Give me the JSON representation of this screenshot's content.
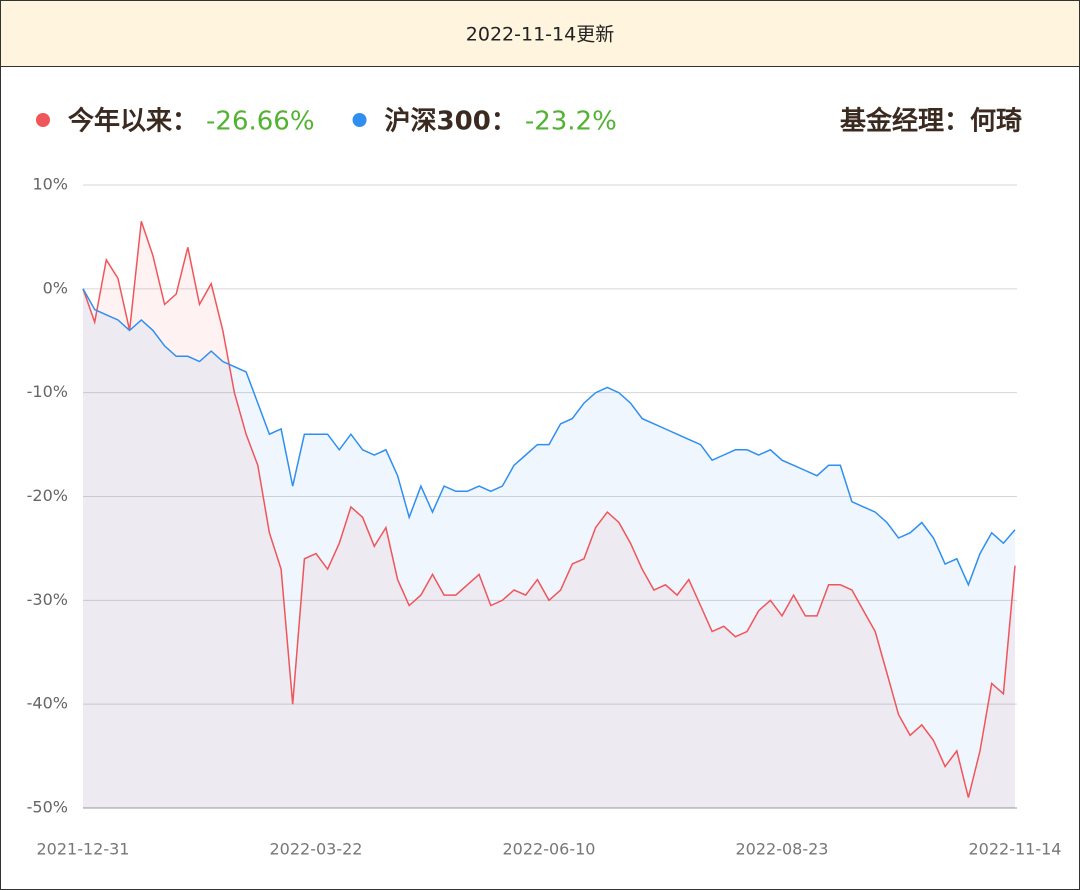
{
  "header": {
    "title": "2022-11-14更新"
  },
  "chart_data": {
    "type": "line",
    "manager": "基金经理：何琦",
    "categories": [
      "2021-12-31",
      null,
      null,
      null,
      null,
      null,
      null,
      null,
      null,
      null,
      null,
      null,
      null,
      null,
      null,
      null,
      null,
      null,
      null,
      null,
      "2022-03-22",
      null,
      null,
      null,
      null,
      null,
      null,
      null,
      null,
      null,
      null,
      null,
      null,
      null,
      null,
      null,
      null,
      null,
      null,
      null,
      "2022-06-10",
      null,
      null,
      null,
      null,
      null,
      null,
      null,
      null,
      null,
      null,
      null,
      null,
      null,
      null,
      null,
      null,
      null,
      null,
      null,
      "2022-08-23",
      null,
      null,
      null,
      null,
      null,
      null,
      null,
      null,
      null,
      null,
      null,
      null,
      null,
      null,
      null,
      null,
      null,
      null,
      null,
      "2022-11-14"
    ],
    "series": [
      {
        "name": "今年以来：",
        "legend_value": "-26.66%",
        "color": "#f0555a",
        "values": [
          0,
          -3.2,
          2.8,
          1,
          -4,
          6.5,
          3.2,
          -1.5,
          -0.5,
          4,
          -1.5,
          0.5,
          -4,
          -10,
          -14,
          -17,
          -23.5,
          -27,
          -40,
          -26,
          -25.5,
          -27,
          -24.5,
          -21,
          -22,
          -24.8,
          -23,
          -28,
          -30.5,
          -29.5,
          -27.5,
          -29.5,
          -29.5,
          -28.5,
          -27.5,
          -30.5,
          -30,
          -29,
          -29.5,
          -28,
          -30,
          -29,
          -26.5,
          -26,
          -23,
          -21.5,
          -22.5,
          -24.5,
          -27,
          -29,
          -28.5,
          -29.5,
          -28,
          -30.5,
          -33,
          -32.5,
          -33.5,
          -33,
          -31,
          -30,
          -31.5,
          -29.5,
          -31.5,
          -31.5,
          -28.5,
          -28.5,
          -29,
          -31,
          -33,
          -37,
          -41,
          -43,
          -42,
          -43.5,
          -46,
          -44.5,
          -49,
          -44.5,
          -38,
          -39,
          -26.66
        ]
      },
      {
        "name": "沪深300：",
        "legend_value": "-23.2%",
        "color": "#2e8ff0",
        "values": [
          0,
          -2,
          -2.5,
          -3,
          -4,
          -3,
          -4,
          -5.5,
          -6.5,
          -6.5,
          -7,
          -6,
          -7,
          -7.5,
          -8,
          -11,
          -14,
          -13.5,
          -19,
          -14,
          -14,
          -14,
          -15.5,
          -14,
          -15.5,
          -16,
          -15.5,
          -18,
          -22,
          -19,
          -21.5,
          -19,
          -19.5,
          -19.5,
          -19,
          -19.5,
          -19,
          -17,
          -16,
          -15,
          -15,
          -13,
          -12.5,
          -11,
          -10,
          -9.5,
          -10,
          -11,
          -12.5,
          -13,
          -13.5,
          -14,
          -14.5,
          -15,
          -16.5,
          -16,
          -15.5,
          -15.5,
          -16,
          -15.5,
          -16.5,
          -17,
          -17.5,
          -18,
          -17,
          -17,
          -20.5,
          -21,
          -21.5,
          -22.5,
          -24,
          -23.5,
          -22.5,
          -24,
          -26.5,
          -26,
          -28.5,
          -25.5,
          -23.5,
          -24.5,
          -23.2
        ]
      }
    ],
    "ylim": [
      -50,
      10
    ],
    "yticks": [
      {
        "value": 10,
        "label": "10%"
      },
      {
        "value": 0,
        "label": "0%"
      },
      {
        "value": -10,
        "label": "-10%"
      },
      {
        "value": -20,
        "label": "-20%"
      },
      {
        "value": -30,
        "label": "-30%"
      },
      {
        "value": -40,
        "label": "-40%"
      },
      {
        "value": -50,
        "label": "-50%"
      }
    ],
    "grid": true,
    "value_color": "#52b332"
  }
}
